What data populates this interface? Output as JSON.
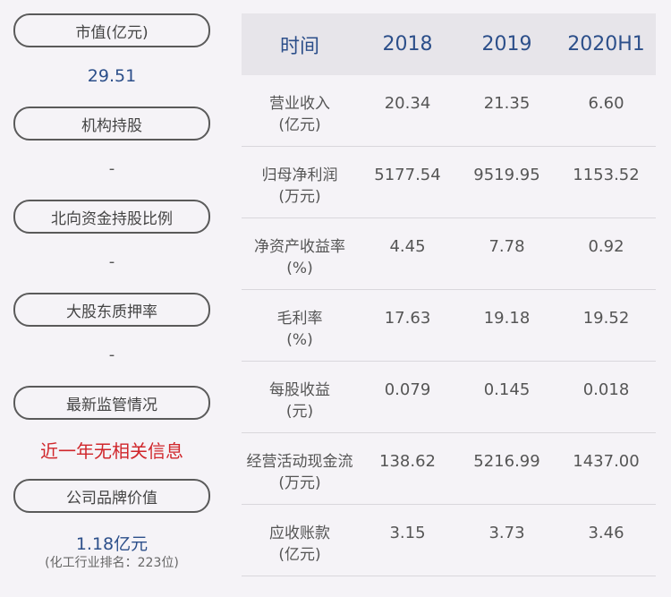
{
  "left": {
    "items": [
      {
        "label": "市值(亿元)",
        "value": "29.51"
      },
      {
        "label": "机构持股",
        "value": "-"
      },
      {
        "label": "北向资金持股比例",
        "value": "-"
      },
      {
        "label": "大股东质押率",
        "value": "-"
      },
      {
        "label": "最新监管情况",
        "value": "近一年无相关信息"
      },
      {
        "label": "公司品牌价值",
        "value": "1.18亿元",
        "sub": "(化工行业排名：223位)"
      }
    ],
    "colors": {
      "accent": "#2c4f8a",
      "alert": "#d0262b"
    }
  },
  "table": {
    "headers": [
      "时间",
      "2018",
      "2019",
      "2020H1"
    ],
    "rows": [
      {
        "label1": "营业收入",
        "label2": "(亿元)",
        "values": [
          "20.34",
          "21.35",
          "6.60"
        ]
      },
      {
        "label1": "归母净利润",
        "label2": "(万元)",
        "values": [
          "5177.54",
          "9519.95",
          "1153.52"
        ]
      },
      {
        "label1": "净资产收益率",
        "label2": "(%)",
        "values": [
          "4.45",
          "7.78",
          "0.92"
        ]
      },
      {
        "label1": "毛利率",
        "label2": "(%)",
        "values": [
          "17.63",
          "19.18",
          "19.52"
        ]
      },
      {
        "label1": "每股收益",
        "label2": "(元)",
        "values": [
          "0.079",
          "0.145",
          "0.018"
        ]
      },
      {
        "label1": "经营活动现金流",
        "label2": "(万元)",
        "values": [
          "138.62",
          "5216.99",
          "1437.00"
        ]
      },
      {
        "label1": "应收账款",
        "label2": "(亿元)",
        "values": [
          "3.15",
          "3.73",
          "3.46"
        ]
      }
    ]
  }
}
